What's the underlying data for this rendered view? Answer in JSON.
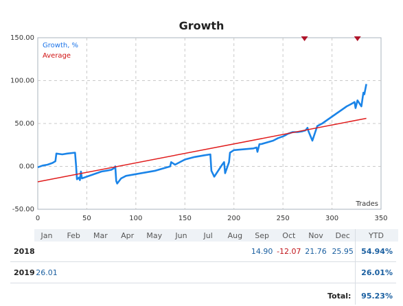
{
  "title": "Growth",
  "chart_data": {
    "type": "line",
    "title": "Growth",
    "xlabel": "Trades",
    "ylabel": "",
    "xlim": [
      0,
      350
    ],
    "ylim": [
      -50,
      150
    ],
    "xticks": [
      0,
      50,
      100,
      150,
      200,
      250,
      300,
      350
    ],
    "yticks": [
      "150.00",
      "100.00",
      "50.00",
      "0.00",
      "-50.00"
    ],
    "ytick_values": [
      150,
      100,
      50,
      0,
      -50
    ],
    "grid": true,
    "legend_placement": "top-left",
    "series": [
      {
        "name": "Growth, %",
        "color": "#1a84e8",
        "x": [
          0,
          5,
          10,
          15,
          18,
          19,
          25,
          30,
          38,
          39,
          40,
          41,
          42,
          43,
          44,
          45,
          50,
          55,
          60,
          65,
          70,
          75,
          78,
          79,
          80,
          81,
          85,
          90,
          100,
          110,
          120,
          135,
          136,
          140,
          150,
          160,
          170,
          176,
          177,
          180,
          188,
          190,
          191,
          195,
          196,
          200,
          220,
          223,
          224,
          226,
          228,
          240,
          245,
          250,
          252,
          255,
          260,
          265,
          270,
          273,
          275,
          276,
          280,
          285,
          290,
          295,
          300,
          305,
          310,
          315,
          320,
          323,
          324,
          326,
          330,
          332,
          333,
          335
        ],
        "y": [
          -1,
          1,
          2,
          4,
          6,
          15,
          14,
          15,
          16,
          2,
          -15,
          -14,
          -13,
          -16,
          -6,
          -14,
          -12,
          -10,
          -8,
          -6,
          -5,
          -4,
          -2,
          0,
          -17,
          -20,
          -14,
          -11,
          -9,
          -7,
          -5,
          0,
          5,
          2,
          8,
          11,
          13,
          14,
          -5,
          -12,
          2,
          5,
          -8,
          5,
          16,
          19,
          21,
          22,
          17,
          26,
          26,
          30,
          33,
          35,
          36,
          38,
          40,
          40,
          41,
          42,
          45,
          41,
          30,
          47,
          50,
          54,
          58,
          62,
          66,
          70,
          73,
          75,
          68,
          77,
          70,
          86,
          84,
          96
        ]
      },
      {
        "name": "Average",
        "color": "#e01b1b",
        "x": [
          0,
          335
        ],
        "y": [
          -18,
          56
        ]
      }
    ],
    "markers": [
      {
        "x": 272,
        "label": "triangle-down-marker"
      },
      {
        "x": 326,
        "label": "triangle-down-marker"
      }
    ]
  },
  "table": {
    "months": [
      "Jan",
      "Feb",
      "Mar",
      "Apr",
      "May",
      "Jun",
      "Jul",
      "Aug",
      "Sep",
      "Oct",
      "Nov",
      "Dec"
    ],
    "ytd_header": "YTD",
    "rows": [
      {
        "year": "2018",
        "values": [
          "",
          "",
          "",
          "",
          "",
          "",
          "",
          "",
          "14.90",
          "-12.07",
          "21.76",
          "25.95"
        ],
        "ytd": "54.94%"
      },
      {
        "year": "2019",
        "values": [
          "26.01",
          "",
          "",
          "",
          "",
          "",
          "",
          "",
          "",
          "",
          "",
          ""
        ],
        "ytd": "26.01%"
      }
    ],
    "total_label": "Total:",
    "total_value": "95.23%"
  }
}
